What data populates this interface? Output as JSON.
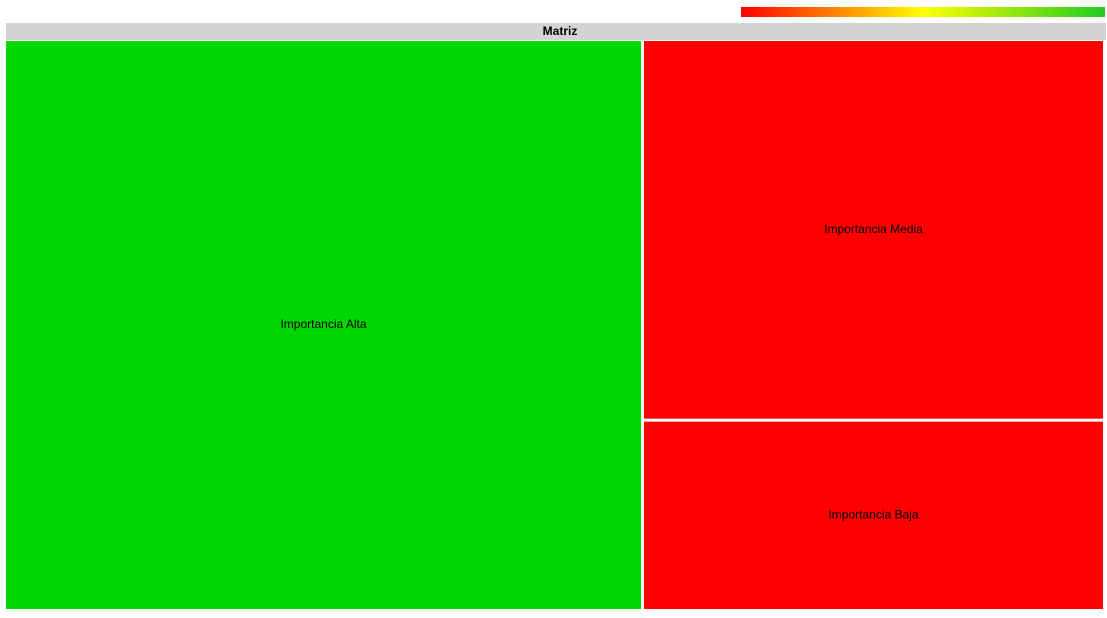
{
  "chart_data": {
    "type": "treemap",
    "title": "Matriz",
    "categories": [
      "Importancia Alta",
      "Importancia Media",
      "Importancia Baja"
    ],
    "values": [
      58,
      28,
      14
    ],
    "colors": [
      "#00d600",
      "#ff0000",
      "#ff0000"
    ],
    "colorscale": [
      "#ff0000",
      "#ffff00",
      "#22cc22"
    ]
  }
}
